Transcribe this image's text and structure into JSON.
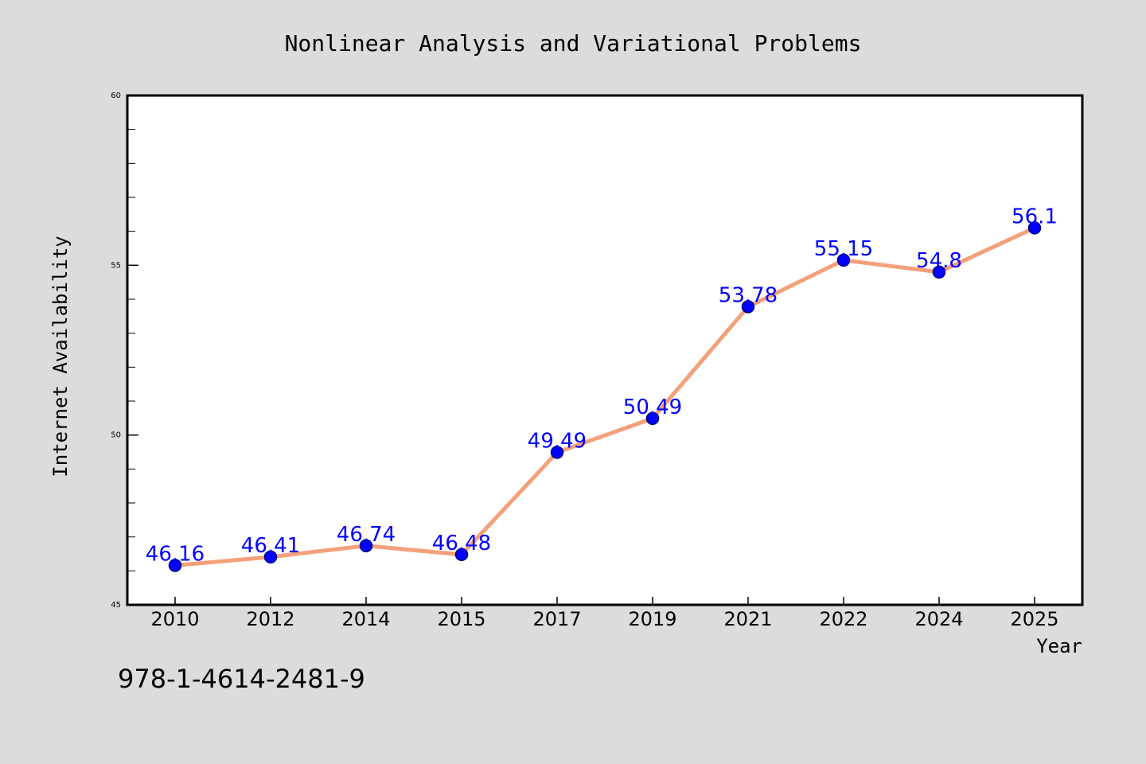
{
  "chart_data": {
    "type": "line",
    "title": "Nonlinear Analysis and Variational Problems",
    "xlabel": "Year",
    "ylabel": "Internet Availability",
    "categories": [
      "2010",
      "2012",
      "2014",
      "2015",
      "2017",
      "2019",
      "2021",
      "2022",
      "2024",
      "2025"
    ],
    "series": [
      {
        "values": [
          46.16,
          46.41,
          46.74,
          46.48,
          49.49,
          50.49,
          53.78,
          55.15,
          54.8,
          56.1
        ],
        "data_labels": [
          "46.16",
          "46.41",
          "46.74",
          "46.48",
          "49.49",
          "50.49",
          "53.78",
          "55.15",
          "54.8",
          "56.1"
        ]
      }
    ],
    "ylim": [
      45,
      60
    ],
    "yticks": [
      "45",
      "50",
      "55",
      "60"
    ],
    "grid": false,
    "colors": {
      "line": "#f4a07a",
      "marker": "#0000ff",
      "marker_edge": "#000080",
      "data_label": "#0000ff",
      "plot_background": "#ffffff",
      "figure_background": "#dcdcdc"
    }
  },
  "annotation": {
    "isbn": "978-1-4614-2481-9"
  }
}
